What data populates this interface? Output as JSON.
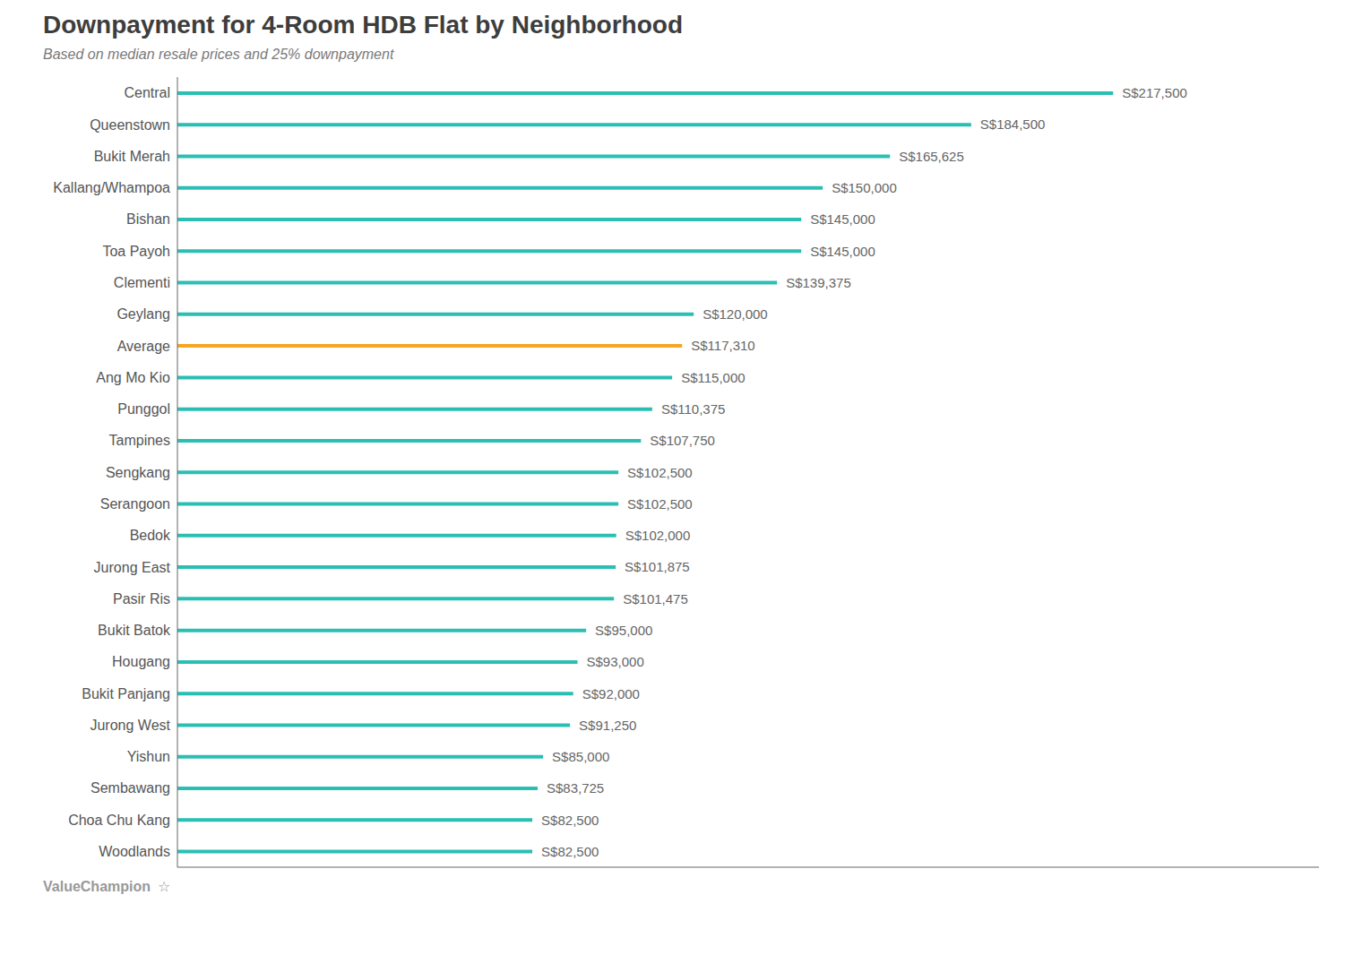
{
  "chart_data": {
    "type": "bar",
    "orientation": "horizontal",
    "title": "Downpayment for 4-Room HDB Flat by Neighborhood",
    "subtitle": "Based on median resale prices and 25% downpayment",
    "annotations": [
      "ValueChampion",
      "☆"
    ],
    "categories": [
      "Central",
      "Queenstown",
      "Bukit Merah",
      "Kallang/Whampoa",
      "Bishan",
      "Toa Payoh",
      "Clementi",
      "Geylang",
      "Average",
      "Ang Mo Kio",
      "Punggol",
      "Tampines",
      "Sengkang",
      "Serangoon",
      "Bedok",
      "Jurong East",
      "Pasir Ris",
      "Bukit Batok",
      "Hougang",
      "Bukit Panjang",
      "Jurong West",
      "Yishun",
      "Sembawang",
      "Choa Chu Kang",
      "Woodlands"
    ],
    "values": [
      217500,
      184500,
      165625,
      150000,
      145000,
      145000,
      139375,
      120000,
      117310,
      115000,
      110375,
      107750,
      102500,
      102500,
      102000,
      101875,
      101475,
      95000,
      93000,
      92000,
      91250,
      85000,
      83725,
      82500,
      82500
    ],
    "value_labels": [
      "S$217,500",
      "S$184,500",
      "S$165,625",
      "S$150,000",
      "S$145,000",
      "S$145,000",
      "S$139,375",
      "S$120,000",
      "S$117,310",
      "S$115,000",
      "S$110,375",
      "S$107,750",
      "S$102,500",
      "S$102,500",
      "S$102,000",
      "S$101,875",
      "S$101,475",
      "S$95,000",
      "S$93,000",
      "S$92,000",
      "S$91,250",
      "S$85,000",
      "S$83,725",
      "S$82,500",
      "S$82,500"
    ],
    "colors": [
      "#2BBFB3",
      "#2BBFB3",
      "#2BBFB3",
      "#2BBFB3",
      "#2BBFB3",
      "#2BBFB3",
      "#2BBFB3",
      "#2BBFB3",
      "#F5A623",
      "#2BBFB3",
      "#2BBFB3",
      "#2BBFB3",
      "#2BBFB3",
      "#2BBFB3",
      "#2BBFB3",
      "#2BBFB3",
      "#2BBFB3",
      "#2BBFB3",
      "#2BBFB3",
      "#2BBFB3",
      "#2BBFB3",
      "#2BBFB3",
      "#2BBFB3",
      "#2BBFB3",
      "#2BBFB3"
    ],
    "xlim": [
      0,
      265350
    ],
    "data_labels": true,
    "tick_labels": "y",
    "grid": false
  }
}
